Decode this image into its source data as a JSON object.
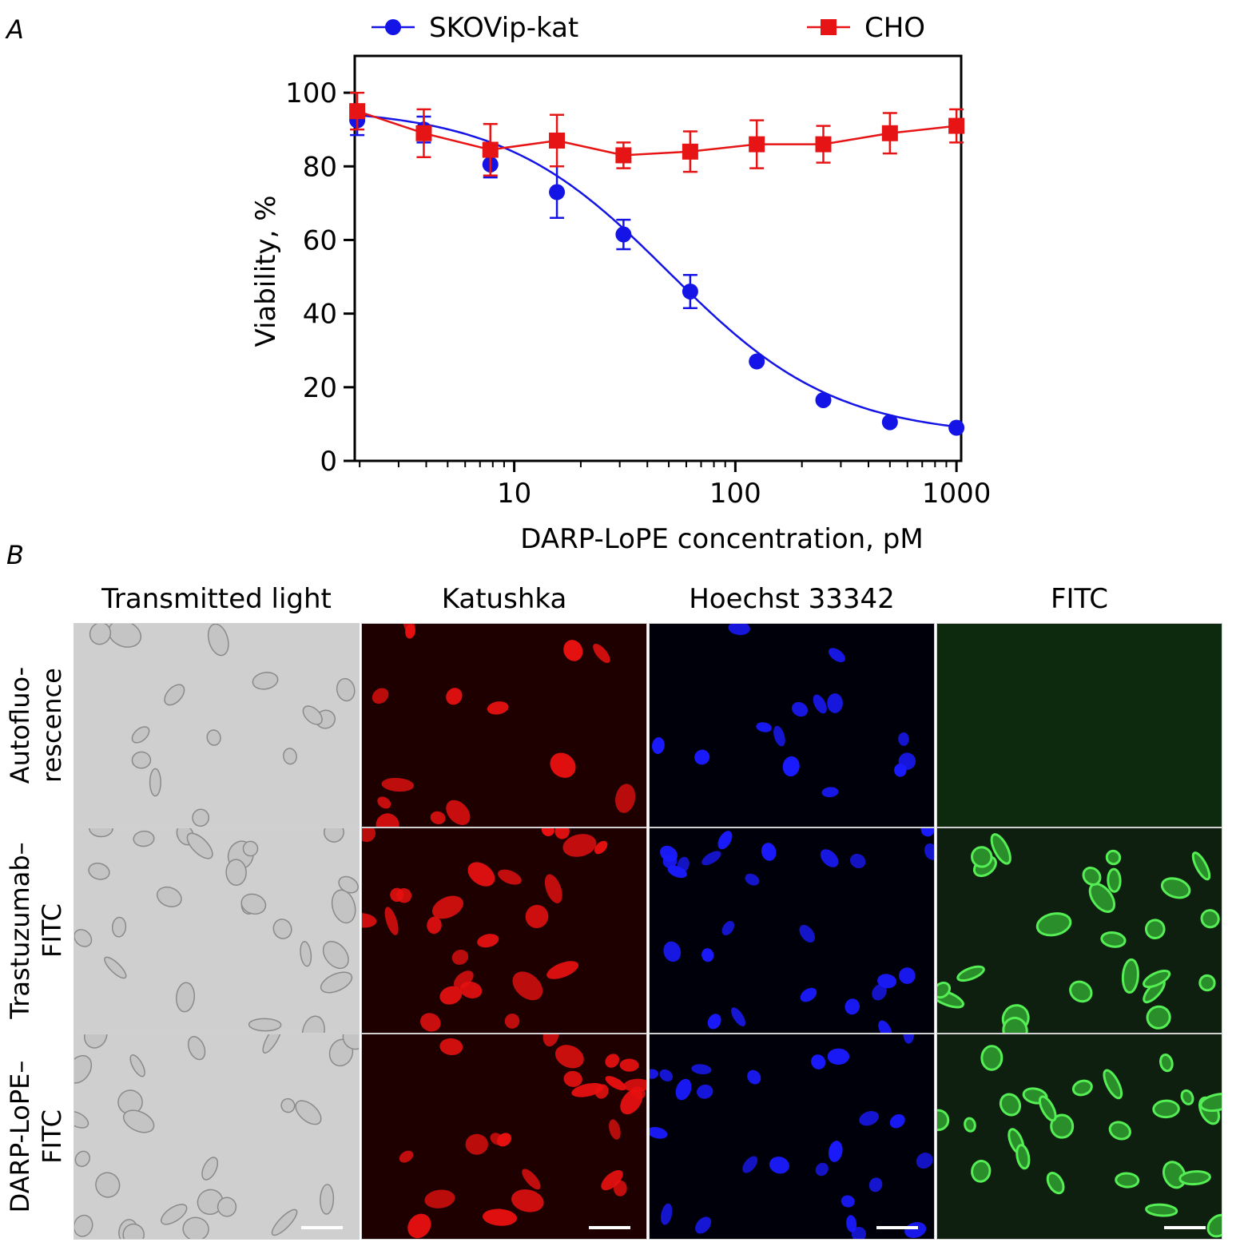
{
  "panel_a": {
    "letter": "A"
  },
  "panel_b": {
    "letter": "B"
  },
  "chart_data": {
    "type": "line",
    "x_scale": "log",
    "xlabel": "DARP-LoPE concentration, pM",
    "ylabel": "Viability, %",
    "xlim": [
      1.9,
      1050
    ],
    "ylim": [
      0,
      110
    ],
    "x_ticks": [
      10,
      100,
      1000
    ],
    "x_tick_labels": [
      "10",
      "100",
      "1000"
    ],
    "y_ticks": [
      0,
      20,
      40,
      60,
      80,
      100
    ],
    "y_tick_labels": [
      "0",
      "20",
      "40",
      "60",
      "80",
      "100"
    ],
    "grid": false,
    "legend_position": "top",
    "series": [
      {
        "name": "SKOVip-kat",
        "color": "#1414e6",
        "marker": "circle",
        "x": [
          1.95,
          3.9,
          7.8,
          15.6,
          31.2,
          62.5,
          125,
          250,
          500,
          1000
        ],
        "y": [
          92.5,
          90,
          80.5,
          73,
          61.5,
          46,
          27,
          16.5,
          10.5,
          9
        ],
        "error": [
          4,
          3.5,
          3.5,
          7,
          4,
          4.5,
          0,
          0,
          0,
          0
        ],
        "fit": "sigmoid",
        "fit_params": {
          "top": 96,
          "bottom": 6.5,
          "ec50_pM": 50,
          "hill": 1.15
        }
      },
      {
        "name": "CHO",
        "color": "#e61414",
        "marker": "square",
        "x": [
          1.95,
          3.9,
          7.8,
          15.6,
          31.2,
          62.5,
          125,
          250,
          500,
          1000
        ],
        "y": [
          95,
          89,
          84.5,
          87,
          83,
          84,
          86,
          86,
          89,
          91
        ],
        "error": [
          5,
          6.5,
          7,
          7,
          3.5,
          5.5,
          6.5,
          5,
          5.5,
          4.5
        ],
        "fit": "connect"
      }
    ]
  },
  "micrographs": {
    "columns": [
      "Transmitted light",
      "Katushka",
      "Hoechst 33342",
      "FITC"
    ],
    "rows": [
      {
        "lines": [
          "Autofluo-",
          "rescence"
        ]
      },
      {
        "lines": [
          "Trastuzumab–",
          "FITC"
        ]
      },
      {
        "lines": [
          "DARP-LoPE–",
          "FITC"
        ]
      }
    ]
  }
}
